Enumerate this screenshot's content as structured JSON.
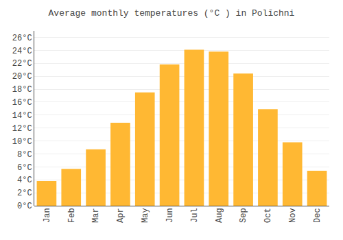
{
  "chart_data": {
    "type": "bar",
    "title": "Average monthly temperatures (°C ) in Polīchni",
    "categories": [
      "Jan",
      "Feb",
      "Mar",
      "Apr",
      "May",
      "Jun",
      "Jul",
      "Aug",
      "Sep",
      "Oct",
      "Nov",
      "Dec"
    ],
    "values": [
      3.8,
      5.7,
      8.7,
      12.8,
      17.5,
      21.8,
      24.1,
      23.8,
      20.4,
      14.9,
      9.8,
      5.4
    ],
    "color": "#FFB833",
    "ylim": [
      0,
      27
    ],
    "yticks": [
      {
        "value": 0,
        "label": "0°C"
      },
      {
        "value": 2,
        "label": "2°C"
      },
      {
        "value": 4,
        "label": "4°C"
      },
      {
        "value": 6,
        "label": "6°C"
      },
      {
        "value": 8,
        "label": "8°C"
      },
      {
        "value": 10,
        "label": "10°C"
      },
      {
        "value": 12,
        "label": "12°C"
      },
      {
        "value": 14,
        "label": "14°C"
      },
      {
        "value": 16,
        "label": "16°C"
      },
      {
        "value": 18,
        "label": "18°C"
      },
      {
        "value": 20,
        "label": "20°C"
      },
      {
        "value": 22,
        "label": "22°C"
      },
      {
        "value": 24,
        "label": "24°C"
      },
      {
        "value": 26,
        "label": "26°C"
      }
    ],
    "grid": true
  }
}
